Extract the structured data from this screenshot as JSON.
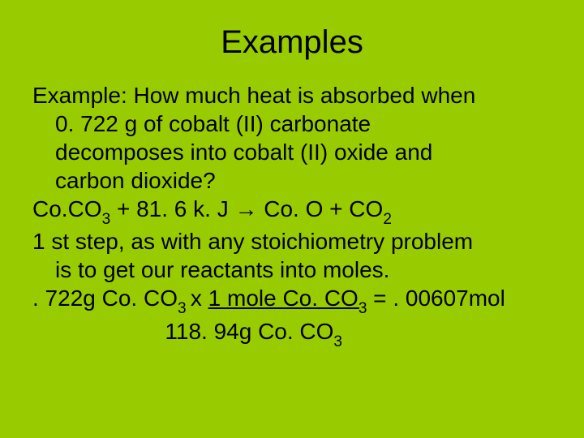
{
  "background_color": "#99cc00",
  "text_color": "#000000",
  "font_family": "Arial",
  "title": {
    "text": "Examples",
    "fontsize": 40,
    "align": "center"
  },
  "body": {
    "fontsize": 28,
    "question_l1": "Example:  How much heat is absorbed when",
    "question_l2": "0. 722 g of cobalt (II) carbonate",
    "question_l3": "decomposes into cobalt (II) oxide and",
    "question_l4": "carbon dioxide?",
    "equation_prefix": "Co.CO",
    "equation_sub1": "3",
    "equation_mid1": " + 81. 6 k. J ",
    "equation_arrow": "→",
    "equation_mid2": " Co. O + CO",
    "equation_sub2": "2",
    "step_l1": "1 st step, as with any stoichiometry problem",
    "step_l2": "is to get our reactants into moles.",
    "calc_l1_a": ". 722g Co. CO",
    "calc_l1_sub1": "3 ",
    "calc_l1_b": "x ",
    "calc_l1_u1": "1 mole Co. CO",
    "calc_l1_usub": "3",
    "calc_l1_c": "  = . 00607mol",
    "calc_l2_pad": "                     ",
    "calc_l2_a": "118. 94g Co. CO",
    "calc_l2_sub": "3"
  }
}
